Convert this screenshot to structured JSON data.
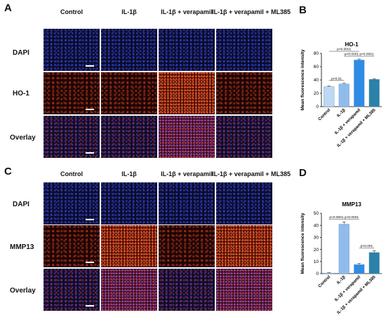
{
  "panels": {
    "A": "A",
    "B": "B",
    "C": "C",
    "D": "D"
  },
  "columns": [
    "Control",
    "IL-1β",
    "IL-1β + verapamil",
    "IL-1β + verapamil + ML385"
  ],
  "rows_top": [
    "DAPI",
    "HO-1",
    "Overlay"
  ],
  "rows_bottom": [
    "DAPI",
    "MMP13",
    "Overlay"
  ],
  "chart_data": [
    {
      "type": "bar",
      "title": "HO-1",
      "ylabel": "Mean fluorescence intensity",
      "categories": [
        "Control",
        "IL-1β",
        "IL-1β + verapamil",
        "IL-1β + verapamil + ML385"
      ],
      "values": [
        30,
        34,
        70,
        41
      ],
      "errors": [
        1,
        1,
        1.5,
        1
      ],
      "colors": [
        "#bcd8f2",
        "#8fbcec",
        "#2e8ce6",
        "#2a82a8"
      ],
      "ylim": [
        0,
        80
      ],
      "yticks": [
        0,
        20,
        40,
        60,
        80
      ],
      "annotations": [
        {
          "from": 0,
          "to": 1,
          "text": "p<0.01"
        },
        {
          "from": 1,
          "to": 2,
          "text": "p<0.0001"
        },
        {
          "from": 0,
          "to": 2,
          "text": "p<0.0001"
        },
        {
          "from": 2,
          "to": 3,
          "text": "p<0.0001"
        }
      ]
    },
    {
      "type": "bar",
      "title": "MMP13",
      "ylabel": "Mean fluorescence intensity",
      "categories": [
        "Control",
        "IL-1β",
        "IL-1β + verapamil",
        "IL-1β + verapamil + ML385"
      ],
      "values": [
        0.5,
        41,
        7.5,
        17.5
      ],
      "errors": [
        0.3,
        1.8,
        1,
        1.5
      ],
      "colors": [
        "#bcd8f2",
        "#8fbcec",
        "#2e8ce6",
        "#2a82a8"
      ],
      "ylim": [
        0,
        50
      ],
      "yticks": [
        0,
        10,
        20,
        30,
        40,
        50
      ],
      "annotations": [
        {
          "from": 0,
          "to": 1,
          "text": "p<0.0001"
        },
        {
          "from": 1,
          "to": 2,
          "text": "p<0.0001"
        },
        {
          "from": 2,
          "to": 3,
          "text": "p<0.001"
        }
      ]
    }
  ]
}
